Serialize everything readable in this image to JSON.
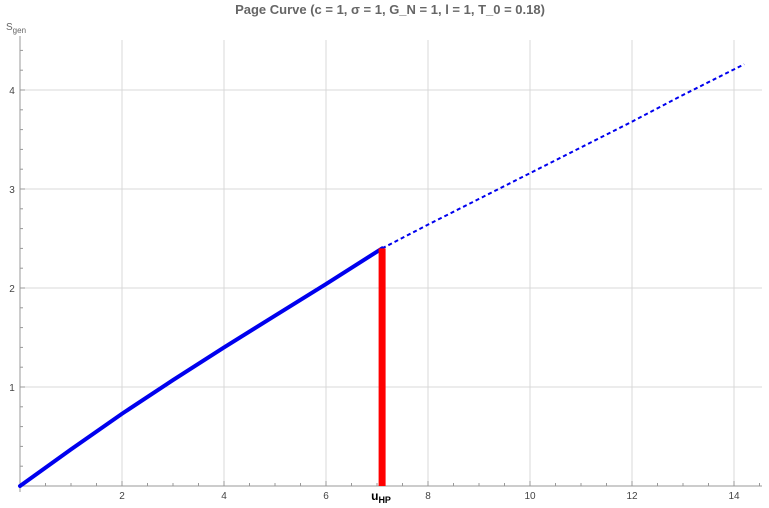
{
  "chart_data": {
    "type": "line",
    "title": "Page Curve (c = 1, σ = 1, G_N = 1, l = 1, T_0 = 0.18)",
    "ylabel_main": "S",
    "ylabel_sub": "gen",
    "xlim": [
      0,
      14.5
    ],
    "ylim": [
      0,
      4.5
    ],
    "grid": true,
    "x_ticks": [
      2,
      4,
      6,
      8,
      10,
      12,
      14
    ],
    "y_ticks": [
      1,
      2,
      3,
      4
    ],
    "series": [
      {
        "style": "solid",
        "color": "#0000ee",
        "x": [
          0,
          1,
          2,
          3,
          4,
          5,
          6,
          7.1
        ],
        "y": [
          0,
          0.37,
          0.73,
          1.07,
          1.4,
          1.72,
          2.04,
          2.4
        ]
      },
      {
        "style": "dashed",
        "color": "#0000ee",
        "x": [
          7.1,
          8,
          9,
          10,
          11,
          12,
          13,
          14.2
        ],
        "y": [
          2.4,
          2.64,
          2.9,
          3.16,
          3.42,
          3.68,
          3.95,
          4.26
        ]
      }
    ],
    "vertical_marker": {
      "x": 7.1,
      "y_from": 0,
      "y_to": 2.4,
      "color": "#ff0000",
      "label_main": "u",
      "label_sub": "HP"
    }
  }
}
